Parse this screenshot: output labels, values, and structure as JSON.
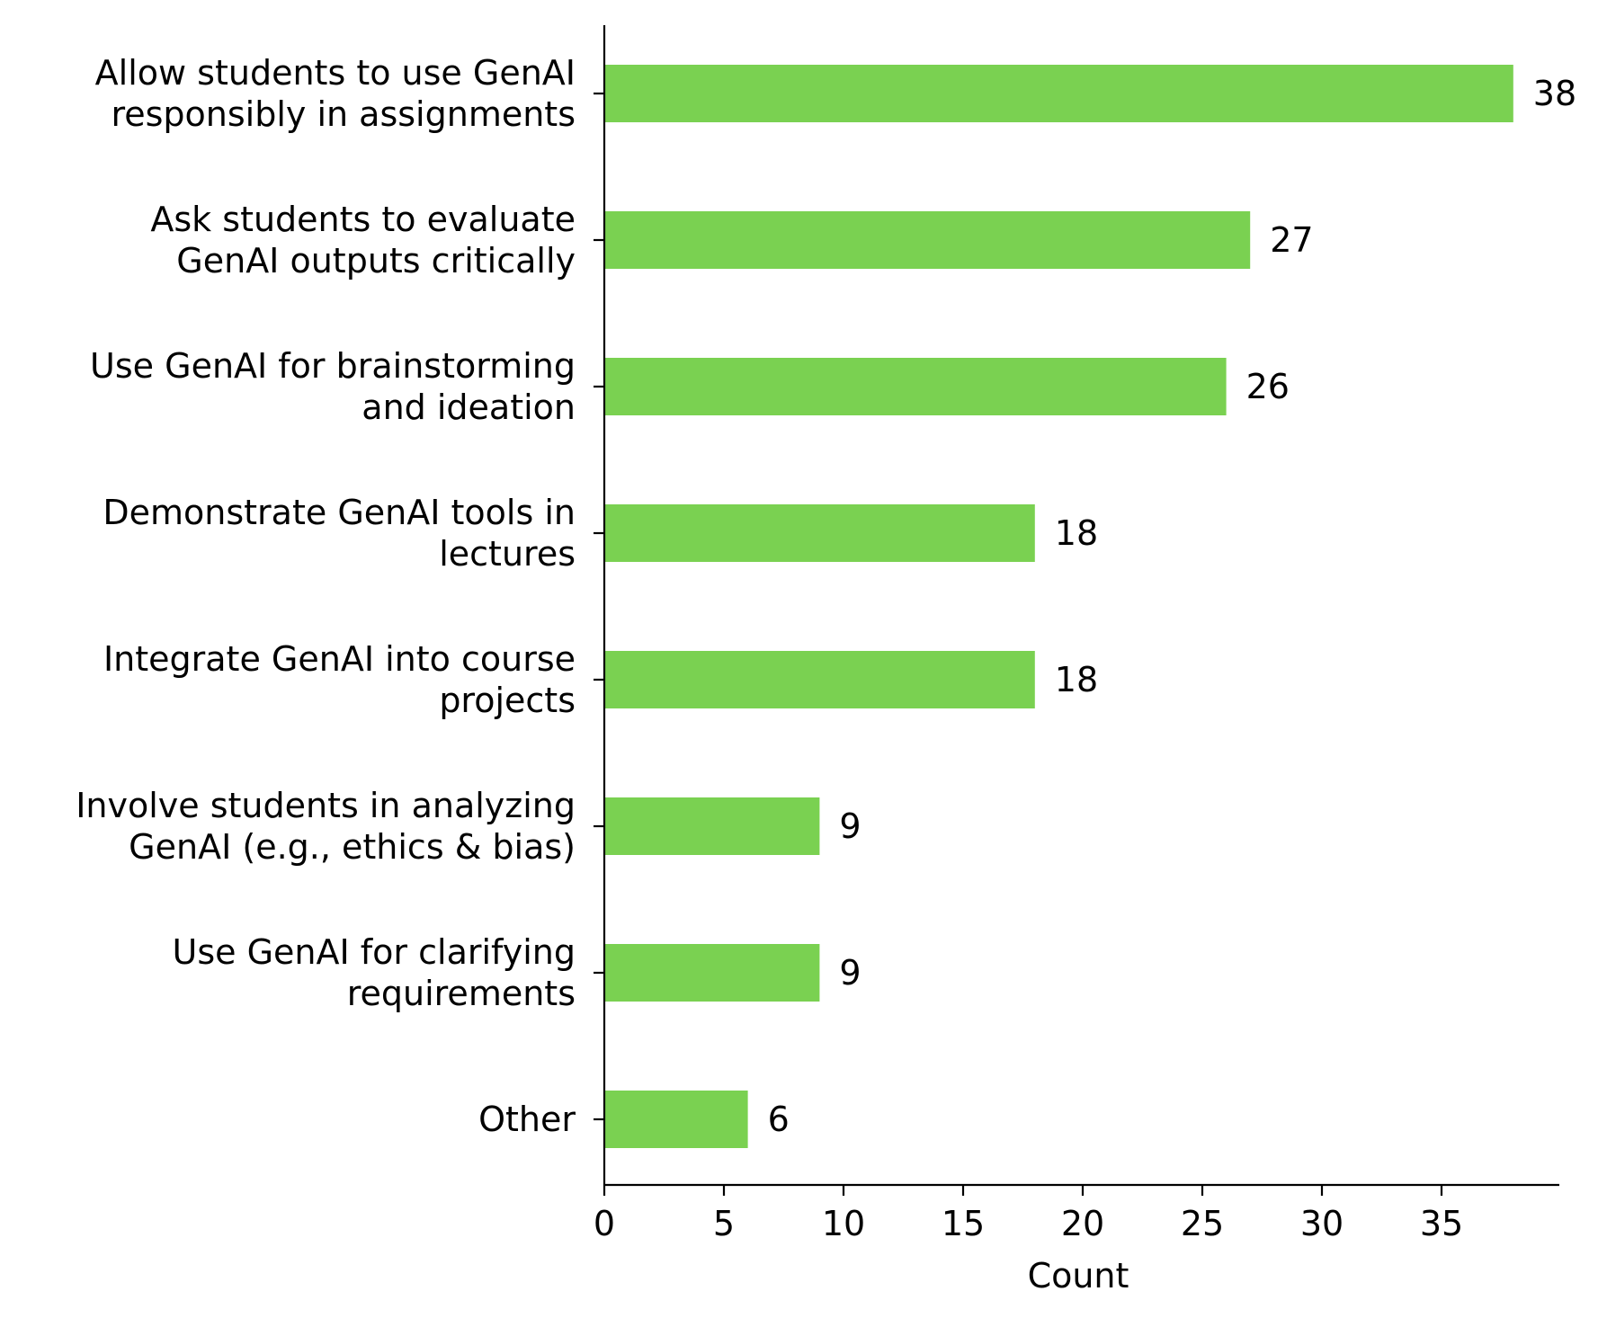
{
  "chart_data": {
    "type": "bar",
    "orientation": "horizontal",
    "categories": [
      [
        "Allow students to use GenAI",
        "responsibly in assignments"
      ],
      [
        "Ask students to evaluate",
        "GenAI outputs critically"
      ],
      [
        "Use GenAI for brainstorming",
        "and ideation"
      ],
      [
        "Demonstrate GenAI tools in",
        "lectures"
      ],
      [
        "Integrate GenAI into course",
        "projects"
      ],
      [
        "Involve students in analyzing",
        "GenAI (e.g., ethics & bias)"
      ],
      [
        "Use GenAI for clarifying",
        "requirements"
      ],
      [
        "Other"
      ]
    ],
    "values": [
      38,
      27,
      26,
      18,
      18,
      9,
      9,
      6
    ],
    "data_labels": [
      "38",
      "27",
      "26",
      "18",
      "18",
      "9",
      "9",
      "6"
    ],
    "xlabel": "Count",
    "ylabel": "",
    "title": "",
    "xlim": [
      0,
      40
    ],
    "xticks": [
      0,
      5,
      10,
      15,
      20,
      25,
      30,
      35
    ],
    "xtick_labels": [
      "0",
      "5",
      "10",
      "15",
      "20",
      "25",
      "30",
      "35"
    ],
    "bar_color": "#7ad151",
    "axis_color": "#000000",
    "grid": false,
    "legend": "none"
  }
}
